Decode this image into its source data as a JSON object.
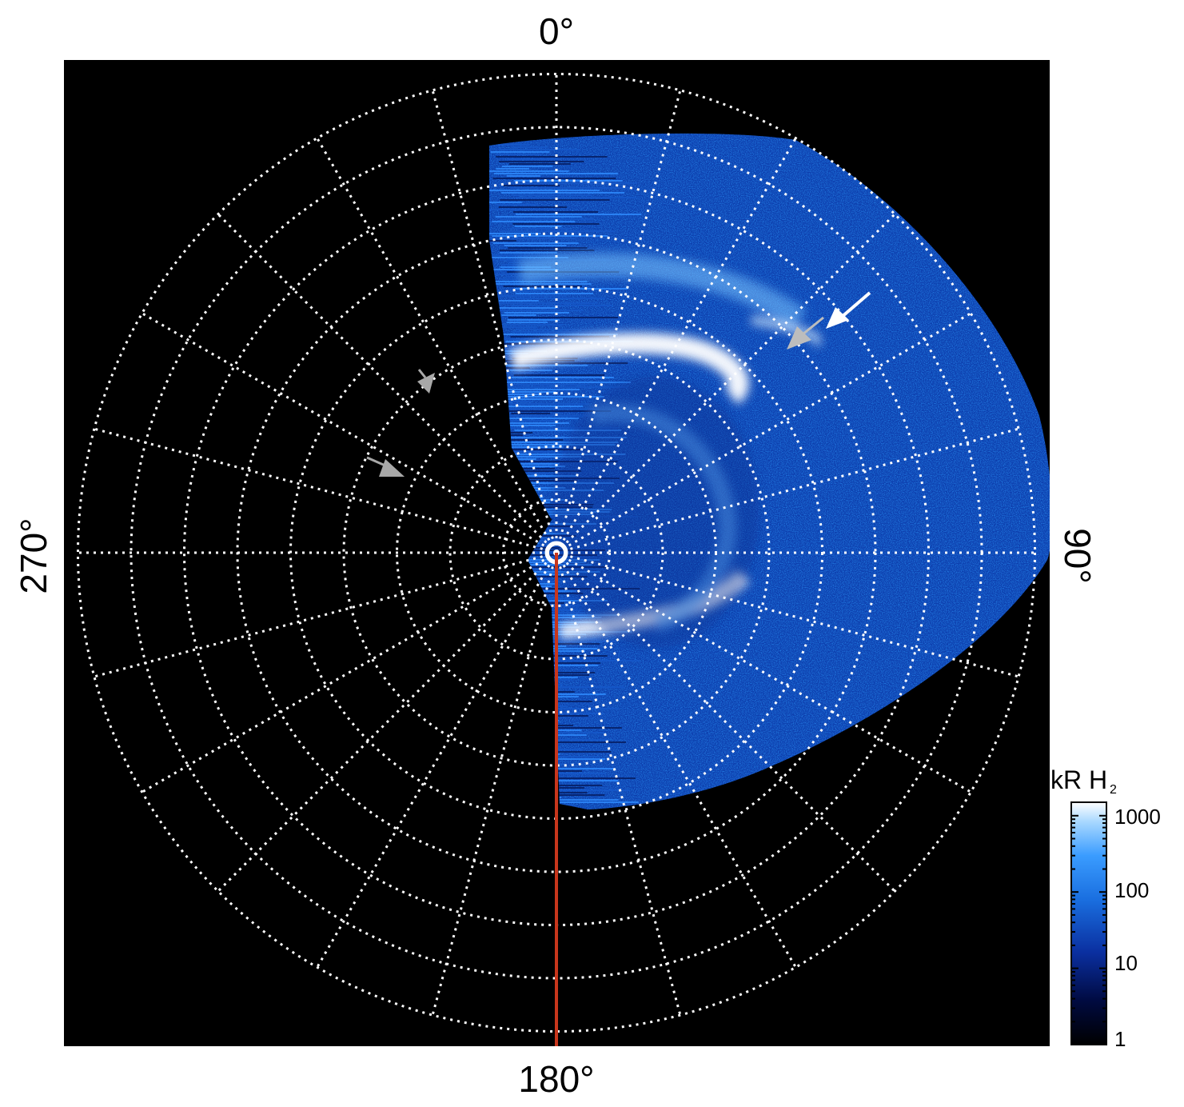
{
  "figure": {
    "labels": {
      "top": "0°",
      "right": "90°",
      "bottom": "180°",
      "left": "270°"
    },
    "colorbar": {
      "title_main": "kR H",
      "title_sub": "2",
      "ticks": [
        "1",
        "10",
        "100",
        "1000"
      ],
      "scale": "log",
      "range": [
        1,
        1500
      ]
    },
    "grid": {
      "rings": 9,
      "meridian_step_deg": 15,
      "style": "dotted white"
    },
    "colors": {
      "background": "#000000",
      "grid": "#ffffff",
      "meridian_line": "#c8361c",
      "emission_low": "#0a2a8a",
      "emission_mid": "#1a78e6",
      "emission_high": "#ffffff",
      "arrow_white": "#ffffff",
      "arrow_grey": "#a8a8a8"
    }
  }
}
